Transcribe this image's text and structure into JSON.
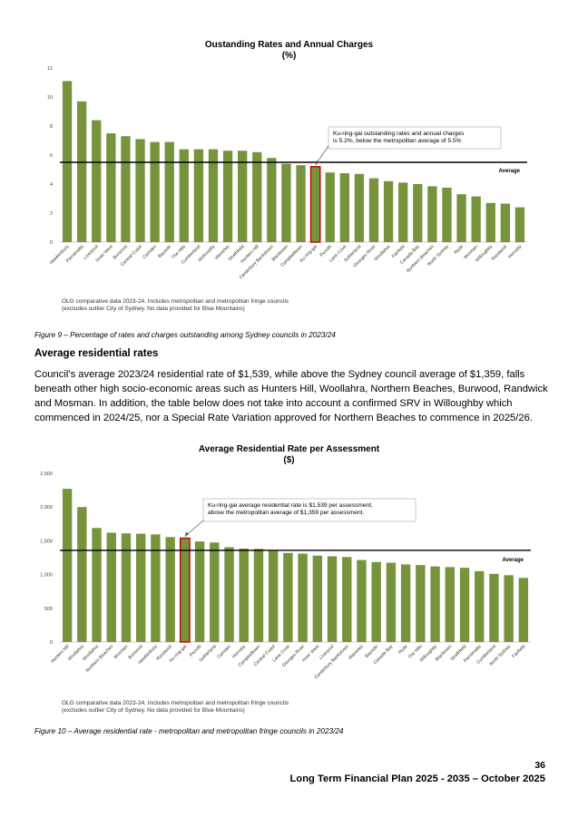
{
  "charts": [
    {
      "title_line1": "Oustanding Rates and Annual Charges",
      "title_line2": "(%)",
      "callout": [
        "Ku-ring-gai outstanding rates and annual  charges",
        "is 5.2%, below the metropolitan average of 5.5%"
      ],
      "average_label": "Average",
      "note": [
        "OLG comparative data 2023-24. Includes metropolitan and metropolitan fringe councils",
        "(excludes outlier City of Sydney. No data provided for Blue Mountains)"
      ]
    },
    {
      "title_line1": "Average Residential  Rate per Assessment",
      "title_line2": "($)",
      "callout": [
        "Ku-ring-gai average residential rate is $1,539 per assessment,",
        "above the metropolitan average of $1,359 per assessment."
      ],
      "average_label": "Average",
      "note": [
        "OLG comparative data 2023-24. Includes metropolitan and metropolitan fringe councils",
        "(excludes outlier City of Sydney. No data provided for Blue Mountains)"
      ]
    }
  ],
  "chart_data": [
    {
      "type": "bar",
      "title": "Oustanding Rates and Annual Charges (%)",
      "categories": [
        "Hawkesbury",
        "Parramatta",
        "Liverpool",
        "Inner West",
        "Burwood",
        "Central Coast",
        "Camden",
        "Bayside",
        "The Hills",
        "Cumberland",
        "Wollondilly",
        "Waverley",
        "Strathfield",
        "Hunters Hill",
        "Canterbury Bankstown",
        "Blacktown",
        "Campbelltown",
        "Ku-ring-gai",
        "Penrith",
        "Lane Cove",
        "Sutherland",
        "Georges River",
        "Woollahra",
        "Fairfield",
        "Canada Bay",
        "Northern Beaches",
        "North Sydney",
        "Ryde",
        "Mosman",
        "Willoughby",
        "Randwick",
        "Hornsby"
      ],
      "values": [
        11.1,
        9.7,
        8.4,
        7.5,
        7.3,
        7.1,
        6.9,
        6.9,
        6.4,
        6.4,
        6.4,
        6.3,
        6.3,
        6.2,
        5.8,
        5.4,
        5.3,
        5.2,
        4.8,
        4.75,
        4.7,
        4.4,
        4.2,
        4.1,
        4.0,
        3.85,
        3.75,
        3.3,
        3.15,
        2.7,
        2.65,
        2.4
      ],
      "highlight": "Ku-ring-gai",
      "average": 5.5,
      "ylim": [
        0,
        12
      ],
      "yticks": [
        0,
        2,
        4,
        6,
        8,
        10,
        12
      ],
      "ytick_labels": [
        "0",
        "2",
        "4",
        "6",
        "8",
        "10",
        "12"
      ],
      "bar_color": "#77933c",
      "highlight_color": "#c00000"
    },
    {
      "type": "bar",
      "title": "Average Residential  Rate per Assessment ($)",
      "categories": [
        "Hunters Hill",
        "Woollahra",
        "Woollahra",
        "Northern Beaches",
        "Mosman",
        "Burwood",
        "Hawkesbury",
        "Randwick",
        "Ku-ring-gai",
        "Penrith",
        "Sutherland",
        "Camden",
        "Hornsby",
        "Campbelltown",
        "Central Coast",
        "Lane Cove",
        "Georges River",
        "Inner West",
        "Liverpool",
        "Canterbury Bankstown",
        "Waverley",
        "Bayside",
        "Canada Bay",
        "Ryde",
        "The Hills",
        "Willoughby",
        "Blacktown",
        "Strathfield",
        "Parramatta",
        "Cumberland",
        "North Sydney",
        "Fairfield"
      ],
      "values": [
        2270,
        2000,
        1690,
        1620,
        1610,
        1605,
        1595,
        1555,
        1539,
        1490,
        1475,
        1405,
        1385,
        1380,
        1350,
        1320,
        1310,
        1280,
        1270,
        1260,
        1215,
        1185,
        1175,
        1150,
        1140,
        1120,
        1110,
        1100,
        1050,
        1010,
        990,
        950
      ],
      "highlight": "Ku-ring-gai",
      "average": 1359,
      "ylim": [
        0,
        2500
      ],
      "yticks": [
        0,
        500,
        1000,
        1500,
        2000,
        2500
      ],
      "ytick_labels": [
        "0",
        "500",
        "1,000",
        "1,500",
        "2,000",
        "2,500"
      ],
      "bar_color": "#77933c",
      "highlight_color": "#c00000"
    }
  ],
  "captions": {
    "fig9": "Figure 9 – Percentage of rates and charges outstanding among Sydney councils in 2023/24",
    "fig10": "Figure 10 – Average residential rate - metropolitan and metropolitan fringe councils in 2023/24"
  },
  "section": {
    "heading": "Average residential rates",
    "paragraph": "Council’s average 2023/24 residential rate of $1,539, while above the Sydney council average of $1,359, falls beneath other high socio-economic areas such as Hunters Hill, Woollahra, Northern Beaches, Burwood, Randwick and Mosman. In addition, the table below does not take into account a confirmed SRV in Willoughby which commenced in 2024/25, nor a Special Rate Variation approved for Northern Beaches to commence in 2025/26."
  },
  "footer": {
    "page_number": "36",
    "doc_title": "Long Term Financial Plan 2025 - 2035 – October 2025"
  }
}
